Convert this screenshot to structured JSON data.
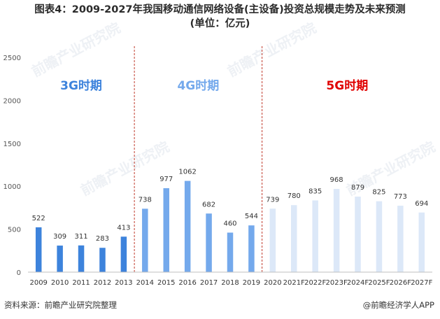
{
  "title_line1": "图表4：2009-2027年我国移动通信网络设备(主设备)投资总规模走势及未来预测",
  "title_line2": "(单位：亿元)",
  "source": "资料来源：前瞻产业研究院整理",
  "brand": "@前瞻经济学人APP",
  "watermark": "前瞻产业研究院",
  "colors": {
    "g3": "#3d83dc",
    "g4": "#74a9ec",
    "g5": "#dce8f8",
    "label3g": "#3d83dc",
    "label4g": "#74a9ec",
    "label5g": "#e00000",
    "divider": "#c0392b"
  },
  "chart_data": {
    "type": "bar",
    "title": "图表4：2009-2027年我国移动通信网络设备(主设备)投资总规模走势及未来预测(单位：亿元)",
    "categories": [
      "2009",
      "2010",
      "2011",
      "2012",
      "2013",
      "2014",
      "2015",
      "2016",
      "2017",
      "2018",
      "2019",
      "2020",
      "2021F",
      "2022F",
      "2023F",
      "2024F",
      "2025F",
      "2026F",
      "2027F"
    ],
    "values": [
      522,
      309,
      311,
      283,
      413,
      738,
      977,
      1062,
      682,
      460,
      544,
      739,
      780,
      835,
      968,
      879,
      825,
      773,
      694
    ],
    "periods": [
      {
        "label": "3G时期",
        "start": 0,
        "end": 4
      },
      {
        "label": "4G时期",
        "start": 5,
        "end": 10
      },
      {
        "label": "5G时期",
        "start": 11,
        "end": 18
      }
    ],
    "ylim": [
      0,
      2500
    ],
    "yticks": [
      0,
      500,
      1000,
      1500,
      2000,
      2500
    ],
    "xlabel": "",
    "ylabel": "",
    "grid": false
  }
}
